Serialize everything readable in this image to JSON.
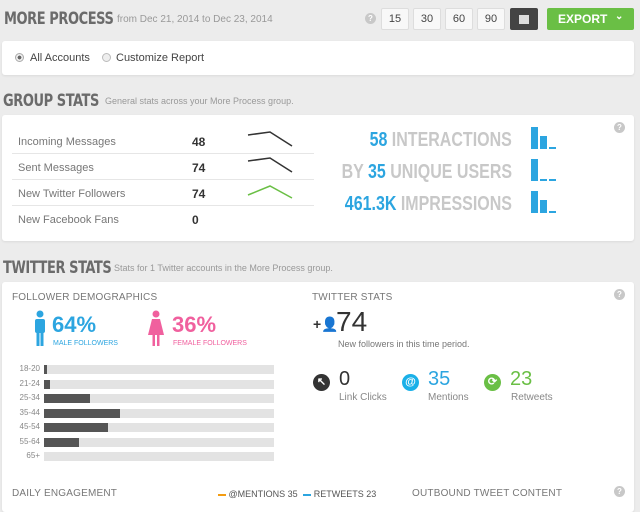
{
  "header": {
    "title": "MORE PROCESS",
    "date_range": "from Dec 21, 2014 to Dec 23, 2014",
    "help": "?",
    "ranges": [
      "15",
      "30",
      "60",
      "90"
    ],
    "calendar_icon": "calendar-icon",
    "export_label": "EXPORT"
  },
  "scope": {
    "options": [
      {
        "label": "All Accounts",
        "selected": true
      },
      {
        "label": "Customize Report",
        "selected": false
      }
    ]
  },
  "group_stats": {
    "title": "GROUP STATS",
    "subtitle": "General stats across your More Process group.",
    "rows": [
      {
        "label": "Incoming Messages",
        "value": "48",
        "trend": "down",
        "color": "#333333"
      },
      {
        "label": "Sent Messages",
        "value": "74",
        "trend": "down",
        "color": "#333333"
      },
      {
        "label": "New Twitter Followers",
        "value": "74",
        "trend": "peak",
        "color": "#6abf45"
      },
      {
        "label": "New Facebook Fans",
        "value": "0"
      }
    ],
    "highlights": [
      {
        "prefix": "",
        "number": "58",
        "suffix": " INTERACTIONS",
        "bars": [
          1,
          0.6,
          0.1
        ]
      },
      {
        "prefix": "BY ",
        "number": "35",
        "suffix": " UNIQUE USERS",
        "bars": [
          1,
          0.1,
          0.1
        ]
      },
      {
        "prefix": "",
        "number": "461.3K",
        "suffix": " IMPRESSIONS",
        "bars": [
          1,
          0.6,
          0.1
        ]
      }
    ]
  },
  "twitter_stats": {
    "title": "TWITTER STATS",
    "subtitle": "Stats for 1 Twitter accounts in the More Process group.",
    "demographics": {
      "title": "FOLLOWER DEMOGRAPHICS",
      "male": {
        "percent": "64%",
        "label": "MALE FOLLOWERS",
        "color": "#2ca5e0"
      },
      "female": {
        "percent": "36%",
        "label": "FEMALE FOLLOWERS",
        "color": "#f0609e"
      },
      "ages": [
        {
          "label": "18-20",
          "pct": 1.3
        },
        {
          "label": "21-24",
          "pct": 2.6
        },
        {
          "label": "25-34",
          "pct": 20
        },
        {
          "label": "35-44",
          "pct": 33
        },
        {
          "label": "45-54",
          "pct": 28
        },
        {
          "label": "55-64",
          "pct": 15
        },
        {
          "label": "65+",
          "pct": 0
        }
      ]
    },
    "stats": {
      "title": "TWITTER STATS",
      "new_followers": "74",
      "new_followers_label": "New followers in this time period.",
      "items": [
        {
          "value": "0",
          "label": "Link Clicks",
          "color": "#333333"
        },
        {
          "value": "35",
          "label": "Mentions",
          "color": "#2ca5e0"
        },
        {
          "value": "23",
          "label": "Retweets",
          "color": "#6abf45"
        }
      ]
    },
    "daily_engagement": {
      "title": "DAILY ENGAGEMENT",
      "legend": [
        {
          "label": "@MENTIONS",
          "value": "35",
          "color": "#f39c12"
        },
        {
          "label": "RETWEETS",
          "value": "23",
          "color": "#2ca5e0"
        }
      ]
    },
    "outbound": {
      "title": "OUTBOUND TWEET CONTENT"
    }
  }
}
